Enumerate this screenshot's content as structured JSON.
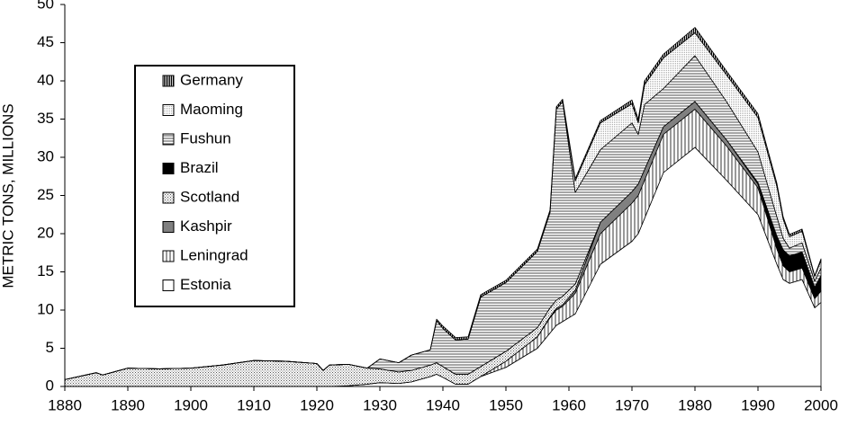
{
  "chart_data": {
    "type": "stacked_area",
    "y_label": "METRIC TONS, MILLIONS",
    "x": [
      1880,
      1885,
      1886,
      1890,
      1895,
      1900,
      1905,
      1910,
      1915,
      1920,
      1921,
      1922,
      1925,
      1928,
      1930,
      1933,
      1935,
      1938,
      1939,
      1940,
      1942,
      1944,
      1946,
      1950,
      1955,
      1957,
      1958,
      1959,
      1961,
      1965,
      1970,
      1971,
      1972,
      1975,
      1980,
      1985,
      1990,
      1993,
      1994,
      1995,
      1997,
      1999,
      2000
    ],
    "series": [
      {
        "name": "Estonia",
        "color": "#ffffff",
        "pattern": "solid",
        "values": [
          0,
          0,
          0,
          0,
          0,
          0,
          0,
          0,
          0,
          0,
          0,
          0,
          0.1,
          0.3,
          0.5,
          0.4,
          0.6,
          1.3,
          1.6,
          1.2,
          0.3,
          0.3,
          1.3,
          2.5,
          5,
          7,
          8,
          8.5,
          9.5,
          16,
          19,
          20,
          22,
          28,
          31.3,
          27,
          22.5,
          16,
          14,
          13.5,
          14,
          10.3,
          11
        ]
      },
      {
        "name": "Leningrad",
        "color": "#ffffff",
        "pattern": "vertical",
        "values": [
          0,
          0,
          0,
          0,
          0,
          0,
          0,
          0,
          0,
          0,
          0,
          0,
          0,
          0,
          0,
          0,
          0,
          0,
          0,
          0,
          0,
          0,
          0,
          0.8,
          1.5,
          2,
          2,
          2,
          2.7,
          4,
          5,
          5,
          5,
          5,
          5,
          4.5,
          3.5,
          2,
          1.8,
          1.5,
          1.5,
          1.2,
          1.5
        ]
      },
      {
        "name": "Kashpir",
        "color": "#808080",
        "pattern": "solid",
        "values": [
          0,
          0,
          0,
          0,
          0,
          0,
          0,
          0,
          0,
          0,
          0,
          0,
          0,
          0,
          0,
          0,
          0,
          0,
          0,
          0,
          0,
          0,
          0,
          0,
          0,
          0.1,
          0.2,
          0.2,
          0.4,
          1.5,
          1.5,
          1.5,
          1.4,
          1,
          1,
          0.8,
          0.5,
          0.2,
          0.1,
          0.1,
          0.1,
          0,
          0
        ]
      },
      {
        "name": "Scotland",
        "color": "#d8d8d8",
        "pattern": "dots",
        "values": [
          0.9,
          1.8,
          1.5,
          2.4,
          2.3,
          2.4,
          2.8,
          3.4,
          3.3,
          3.0,
          2.1,
          2.8,
          2.8,
          2.1,
          1.8,
          1.5,
          1.5,
          1.5,
          1.5,
          1.4,
          1.3,
          1.3,
          1.3,
          1.3,
          1.2,
          1.2,
          1.1,
          1.1,
          0.8,
          0,
          0,
          0,
          0,
          0,
          0,
          0,
          0,
          0,
          0,
          0,
          0,
          0,
          0
        ]
      },
      {
        "name": "Brazil",
        "color": "#000000",
        "pattern": "solid",
        "values": [
          0,
          0,
          0,
          0,
          0,
          0,
          0,
          0,
          0,
          0,
          0,
          0,
          0,
          0,
          0,
          0,
          0,
          0,
          0,
          0,
          0,
          0,
          0,
          0,
          0,
          0,
          0,
          0,
          0,
          0,
          0,
          0,
          0,
          0,
          0,
          0,
          0.2,
          1.5,
          2,
          2,
          2,
          1.5,
          2
        ]
      },
      {
        "name": "Fushun",
        "color": "#ffffff",
        "pattern": "horizontal",
        "values": [
          0,
          0,
          0,
          0,
          0,
          0,
          0,
          0,
          0,
          0,
          0,
          0,
          0,
          0,
          1.3,
          1.2,
          2,
          2,
          5.5,
          5,
          4.5,
          4.6,
          9.1,
          9,
          10,
          12.5,
          25,
          25.5,
          12,
          9.5,
          9,
          6.5,
          8.5,
          5,
          6,
          5,
          4,
          2.5,
          1.5,
          1,
          1.2,
          0.8,
          1
        ]
      },
      {
        "name": "Maoming",
        "color": "#e8e8e8",
        "pattern": "fine",
        "values": [
          0,
          0,
          0,
          0,
          0,
          0,
          0,
          0,
          0,
          0,
          0,
          0,
          0,
          0,
          0,
          0,
          0,
          0,
          0,
          0,
          0,
          0,
          0,
          0,
          0,
          0,
          0,
          0,
          1.5,
          3.5,
          2.5,
          1.5,
          2.6,
          4,
          3,
          3.5,
          4.5,
          4,
          2.5,
          1.5,
          1.5,
          0.6,
          1
        ]
      },
      {
        "name": "Germany",
        "color": "#000000",
        "pattern": "vertical-dense",
        "values": [
          0,
          0,
          0,
          0,
          0,
          0,
          0,
          0,
          0,
          0,
          0,
          0,
          0,
          0,
          0,
          0,
          0,
          0,
          0.2,
          0.3,
          0.3,
          0.3,
          0.3,
          0.3,
          0.3,
          0.3,
          0.3,
          0.3,
          0.3,
          0.3,
          0.5,
          0.5,
          0.5,
          0.5,
          0.7,
          0.5,
          0.5,
          0.4,
          0.3,
          0.3,
          0.3,
          0.1,
          0.2
        ]
      }
    ],
    "xlim": [
      1880,
      2000
    ],
    "xticks": [
      1880,
      1890,
      1900,
      1910,
      1920,
      1930,
      1940,
      1950,
      1960,
      1970,
      1980,
      1990,
      2000
    ],
    "ylim": [
      0,
      50
    ],
    "yticks": [
      0,
      5,
      10,
      15,
      20,
      25,
      30,
      35,
      40,
      45,
      50
    ],
    "grid": false,
    "legend": "upper left"
  }
}
